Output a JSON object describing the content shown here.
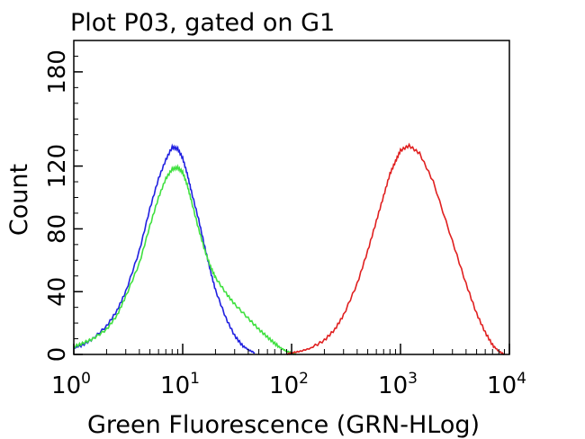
{
  "chart_data": {
    "type": "line",
    "title": "Plot P03, gated on G1",
    "xlabel": "Green Fluorescence (GRN-HLog)",
    "ylabel": "Count",
    "x_scale": "log",
    "xlim": [
      1,
      10000
    ],
    "ylim": [
      0,
      200
    ],
    "grid": false,
    "x_ticks": [
      {
        "base": "10",
        "exp": "0"
      },
      {
        "base": "10",
        "exp": "1"
      },
      {
        "base": "10",
        "exp": "2"
      },
      {
        "base": "10",
        "exp": "3"
      },
      {
        "base": "10",
        "exp": "4"
      }
    ],
    "y_ticks": [
      "0",
      "40",
      "80",
      "120",
      "180"
    ],
    "y_tick_values": [
      0,
      40,
      80,
      120,
      180
    ],
    "series": [
      {
        "color": "#2020e0",
        "x": [
          1.0,
          1.2,
          1.5,
          2.0,
          2.5,
          3.0,
          4.0,
          5.0,
          6.0,
          7.0,
          8.0,
          9.0,
          10.0,
          11.0,
          12.0,
          14.0,
          16.0,
          18.0,
          20.0,
          25.0,
          30.0,
          35.0,
          40.0,
          46.0
        ],
        "values": [
          4,
          6,
          10,
          18,
          28,
          40,
          66,
          93,
          112,
          124,
          132,
          131,
          125,
          115,
          104,
          86,
          68,
          53,
          41,
          23,
          12,
          6,
          3,
          1
        ]
      },
      {
        "color": "#40e040",
        "x": [
          1.0,
          1.2,
          1.5,
          2.0,
          2.5,
          3.0,
          4.0,
          5.0,
          6.0,
          7.0,
          8.0,
          9.0,
          10.0,
          11.0,
          12.0,
          14.0,
          16.0,
          18.0,
          20.0,
          25.0,
          30.0,
          40.0,
          50.0,
          60.0,
          70.0,
          80.0,
          90.0,
          100.0,
          110.0
        ],
        "values": [
          5,
          7,
          10,
          16,
          25,
          37,
          58,
          82,
          100,
          112,
          118,
          119,
          116,
          108,
          98,
          80,
          66,
          56,
          49,
          39,
          32,
          23,
          16,
          11,
          7,
          4,
          2,
          1,
          0
        ]
      },
      {
        "color": "#e02020",
        "x": [
          90,
          100,
          120,
          150,
          200,
          250,
          300,
          400,
          500,
          600,
          700,
          800,
          900,
          1000,
          1200,
          1500,
          2000,
          3000,
          4000,
          5000,
          6000,
          7000,
          8000,
          9000
        ],
        "values": [
          0,
          1,
          2,
          4,
          9,
          16,
          25,
          45,
          66,
          85,
          101,
          115,
          123,
          130,
          133,
          128,
          110,
          72,
          45,
          26,
          14,
          6,
          2,
          0
        ]
      }
    ]
  }
}
